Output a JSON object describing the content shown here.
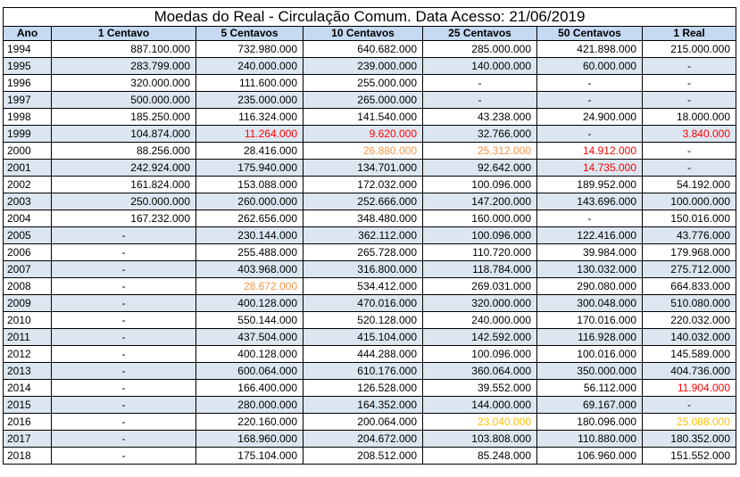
{
  "title": "Moedas do Real - Circulação Comum. Data Acesso: 21/06/2019",
  "columns": [
    "Ano",
    "1 Centavo",
    "5 Centavos",
    "10 Centavos",
    "25 Centavos",
    "50 Centavos",
    "1 Real"
  ],
  "colors": {
    "red": "#ff0000",
    "orange": "#f79646",
    "yellow": "#ffc000",
    "header_bg": "#c5d9f1",
    "alt_row_bg": "#dce6f1"
  },
  "rows": [
    {
      "year": "1994",
      "cells": [
        {
          "v": "887.100.000"
        },
        {
          "v": "732.980.000"
        },
        {
          "v": "640.682.000"
        },
        {
          "v": "285.000.000"
        },
        {
          "v": "421.898.000"
        },
        {
          "v": "215.000.000"
        }
      ]
    },
    {
      "year": "1995",
      "cells": [
        {
          "v": "283.799.000"
        },
        {
          "v": "240.000.000"
        },
        {
          "v": "239.000.000"
        },
        {
          "v": "140.000.000"
        },
        {
          "v": "60.000.000"
        },
        {
          "v": "-"
        }
      ]
    },
    {
      "year": "1996",
      "cells": [
        {
          "v": "320.000.000"
        },
        {
          "v": "111.600.000"
        },
        {
          "v": "255.000.000"
        },
        {
          "v": "-"
        },
        {
          "v": "-"
        },
        {
          "v": "-"
        }
      ]
    },
    {
      "year": "1997",
      "cells": [
        {
          "v": "500.000.000"
        },
        {
          "v": "235.000.000"
        },
        {
          "v": "265.000.000"
        },
        {
          "v": "-"
        },
        {
          "v": "-"
        },
        {
          "v": "-"
        }
      ]
    },
    {
      "year": "1998",
      "cells": [
        {
          "v": "185.250.000"
        },
        {
          "v": "116.324.000"
        },
        {
          "v": "141.540.000"
        },
        {
          "v": "43.238.000"
        },
        {
          "v": "24.900.000"
        },
        {
          "v": "18.000.000"
        }
      ]
    },
    {
      "year": "1999",
      "cells": [
        {
          "v": "104.874.000"
        },
        {
          "v": "11.264.000",
          "c": "red"
        },
        {
          "v": "9.620.000",
          "c": "red"
        },
        {
          "v": "32.766.000"
        },
        {
          "v": "-"
        },
        {
          "v": "3.840.000",
          "c": "red"
        }
      ]
    },
    {
      "year": "2000",
      "cells": [
        {
          "v": "88.256.000"
        },
        {
          "v": "28.416.000"
        },
        {
          "v": "26.880.000",
          "c": "orange"
        },
        {
          "v": "25.312.000",
          "c": "orange"
        },
        {
          "v": "14.912.000",
          "c": "red"
        },
        {
          "v": "-"
        }
      ]
    },
    {
      "year": "2001",
      "cells": [
        {
          "v": "242.924.000"
        },
        {
          "v": "175.940.000"
        },
        {
          "v": "134.701.000"
        },
        {
          "v": "92.642.000"
        },
        {
          "v": "14.735.000",
          "c": "red"
        },
        {
          "v": "-"
        }
      ]
    },
    {
      "year": "2002",
      "cells": [
        {
          "v": "161.824.000"
        },
        {
          "v": "153.088.000"
        },
        {
          "v": "172.032.000"
        },
        {
          "v": "100.096.000"
        },
        {
          "v": "189.952.000"
        },
        {
          "v": "54.192.000"
        }
      ]
    },
    {
      "year": "2003",
      "cells": [
        {
          "v": "250.000.000"
        },
        {
          "v": "260.000.000"
        },
        {
          "v": "252.666.000"
        },
        {
          "v": "147.200.000"
        },
        {
          "v": "143.696.000"
        },
        {
          "v": "100.000.000"
        }
      ]
    },
    {
      "year": "2004",
      "cells": [
        {
          "v": "167.232.000"
        },
        {
          "v": "262.656.000"
        },
        {
          "v": "348.480.000"
        },
        {
          "v": "160.000.000"
        },
        {
          "v": "-"
        },
        {
          "v": "150.016.000"
        }
      ]
    },
    {
      "year": "2005",
      "cells": [
        {
          "v": "-"
        },
        {
          "v": "230.144.000"
        },
        {
          "v": "362.112.000"
        },
        {
          "v": "100.096.000"
        },
        {
          "v": "122.416.000"
        },
        {
          "v": "43.776.000"
        }
      ]
    },
    {
      "year": "2006",
      "cells": [
        {
          "v": "-"
        },
        {
          "v": "255.488.000"
        },
        {
          "v": "265.728.000"
        },
        {
          "v": "110.720.000"
        },
        {
          "v": "39.984.000"
        },
        {
          "v": "179.968.000"
        }
      ]
    },
    {
      "year": "2007",
      "cells": [
        {
          "v": "-"
        },
        {
          "v": "403.968.000"
        },
        {
          "v": "316.800.000"
        },
        {
          "v": "118.784.000"
        },
        {
          "v": "130.032.000"
        },
        {
          "v": "275.712.000"
        }
      ]
    },
    {
      "year": "2008",
      "cells": [
        {
          "v": "-"
        },
        {
          "v": "28.672.000",
          "c": "orange"
        },
        {
          "v": "534.412.000"
        },
        {
          "v": "269.031.000"
        },
        {
          "v": "290.080.000"
        },
        {
          "v": "664.833.000"
        }
      ]
    },
    {
      "year": "2009",
      "cells": [
        {
          "v": "-"
        },
        {
          "v": "400.128.000"
        },
        {
          "v": "470.016.000"
        },
        {
          "v": "320.000.000"
        },
        {
          "v": "300.048.000"
        },
        {
          "v": "510.080.000"
        }
      ]
    },
    {
      "year": "2010",
      "cells": [
        {
          "v": "-"
        },
        {
          "v": "550.144.000"
        },
        {
          "v": "520.128.000"
        },
        {
          "v": "240.000.000"
        },
        {
          "v": "170.016.000"
        },
        {
          "v": "220.032.000"
        }
      ]
    },
    {
      "year": "2011",
      "cells": [
        {
          "v": "-"
        },
        {
          "v": "437.504.000"
        },
        {
          "v": "415.104.000"
        },
        {
          "v": "142.592.000"
        },
        {
          "v": "116.928.000"
        },
        {
          "v": "140.032.000"
        }
      ]
    },
    {
      "year": "2012",
      "cells": [
        {
          "v": "-"
        },
        {
          "v": "400.128.000"
        },
        {
          "v": "444.288.000"
        },
        {
          "v": "100.096.000"
        },
        {
          "v": "100.016.000"
        },
        {
          "v": "145.589.000"
        }
      ]
    },
    {
      "year": "2013",
      "cells": [
        {
          "v": "-"
        },
        {
          "v": "600.064.000"
        },
        {
          "v": "610.176.000"
        },
        {
          "v": "360.064.000"
        },
        {
          "v": "350.000.000"
        },
        {
          "v": "404.736.000"
        }
      ]
    },
    {
      "year": "2014",
      "cells": [
        {
          "v": "-"
        },
        {
          "v": "166.400.000"
        },
        {
          "v": "126.528.000"
        },
        {
          "v": "39.552.000"
        },
        {
          "v": "56.112.000"
        },
        {
          "v": "11.904.000",
          "c": "red"
        }
      ]
    },
    {
      "year": "2015",
      "cells": [
        {
          "v": "-"
        },
        {
          "v": "280.000.000"
        },
        {
          "v": "164.352.000"
        },
        {
          "v": "144.000.000"
        },
        {
          "v": "69.167.000"
        },
        {
          "v": "-"
        }
      ]
    },
    {
      "year": "2016",
      "cells": [
        {
          "v": "-"
        },
        {
          "v": "220.160.000"
        },
        {
          "v": "200.064.000"
        },
        {
          "v": "23.040.000",
          "c": "yellow"
        },
        {
          "v": "180.096.000"
        },
        {
          "v": "25.088.000",
          "c": "yellow"
        }
      ]
    },
    {
      "year": "2017",
      "cells": [
        {
          "v": "-"
        },
        {
          "v": "168.960.000"
        },
        {
          "v": "204.672.000"
        },
        {
          "v": "103.808.000"
        },
        {
          "v": "110.880.000"
        },
        {
          "v": "180.352.000"
        }
      ]
    },
    {
      "year": "2018",
      "cells": [
        {
          "v": "-"
        },
        {
          "v": "175.104.000"
        },
        {
          "v": "208.512.000"
        },
        {
          "v": "85.248.000"
        },
        {
          "v": "106.960.000"
        },
        {
          "v": "151.552.000"
        }
      ]
    }
  ]
}
